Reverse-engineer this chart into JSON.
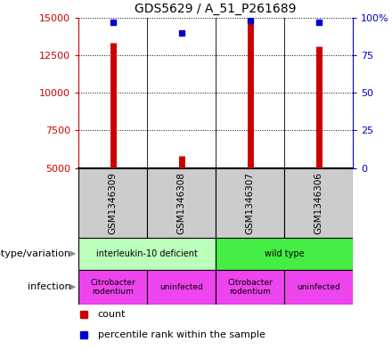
{
  "title": "GDS5629 / A_51_P261689",
  "samples": [
    "GSM1346309",
    "GSM1346308",
    "GSM1346307",
    "GSM1346306"
  ],
  "counts": [
    13300,
    5800,
    14700,
    13100
  ],
  "percentile_ranks": [
    97,
    90,
    98,
    97
  ],
  "y_min": 5000,
  "y_max": 15000,
  "y_ticks": [
    5000,
    7500,
    10000,
    12500,
    15000
  ],
  "y_right_ticks": [
    0,
    25,
    50,
    75,
    100
  ],
  "y_right_labels": [
    "0",
    "25",
    "50",
    "75",
    "100%"
  ],
  "bar_color": "#cc0000",
  "dot_color": "#0000cc",
  "genotype_groups": [
    {
      "label": "interleukin-10 deficient",
      "cols": [
        0,
        1
      ],
      "color": "#bbffbb"
    },
    {
      "label": "wild type",
      "cols": [
        2,
        3
      ],
      "color": "#44ee44"
    }
  ],
  "infection_groups": [
    {
      "label": "Citrobacter\nrodentium",
      "col": 0,
      "color": "#ee44ee"
    },
    {
      "label": "uninfected",
      "col": 1,
      "color": "#ee44ee"
    },
    {
      "label": "Citrobacter\nrodentium",
      "col": 2,
      "color": "#ee44ee"
    },
    {
      "label": "uninfected",
      "col": 3,
      "color": "#ee44ee"
    }
  ],
  "left_labels": [
    "genotype/variation",
    "infection"
  ],
  "legend_items": [
    {
      "label": "count",
      "color": "#cc0000"
    },
    {
      "label": "percentile rank within the sample",
      "color": "#0000cc"
    }
  ],
  "sample_box_color": "#cccccc",
  "left_axis_color": "#cc0000",
  "right_axis_color": "#0000cc",
  "arrow_color": "#888888"
}
